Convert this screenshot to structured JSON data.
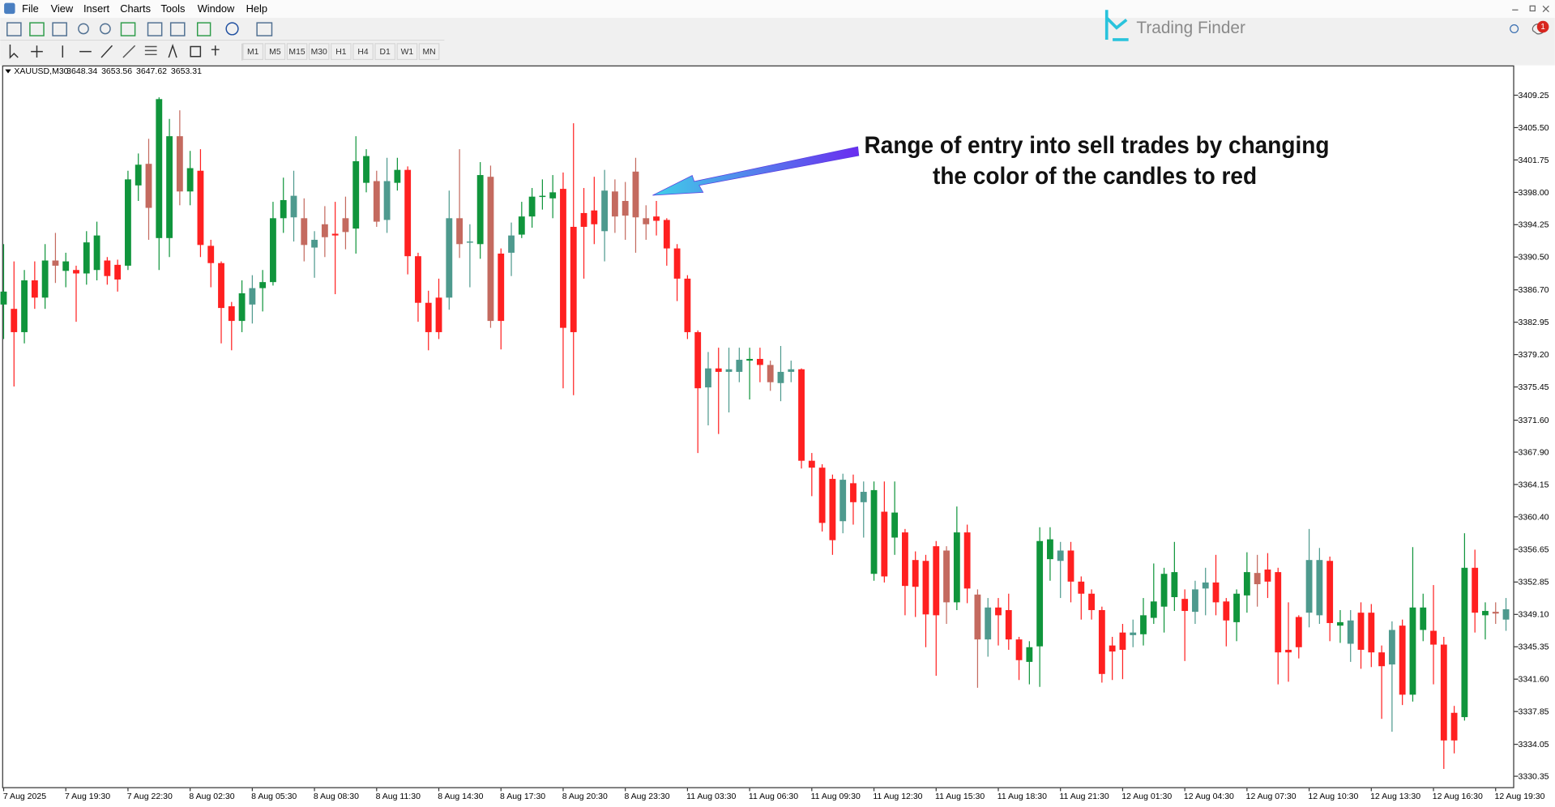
{
  "ui": {
    "menu": [
      "File",
      "View",
      "Insert",
      "Charts",
      "Tools",
      "Window",
      "Help"
    ],
    "timeframes": [
      "M1",
      "M5",
      "M15",
      "M30",
      "H1",
      "H4",
      "D1",
      "W1",
      "MN"
    ],
    "brand": "Trading Finder",
    "badge": "1"
  },
  "chart_data": {
    "type": "candlestick",
    "symbol": "XAUUSD,M30",
    "quote": [
      3648.34,
      3653.56,
      3647.62,
      3653.31
    ],
    "annotation": [
      "Range of entry into sell trades by changing",
      "the color of the candles to red"
    ],
    "grid": false,
    "ylim": [
      3328.97,
      3412.7
    ],
    "yticks": [
      3409.25,
      {
        "value": 3405.5,
        "label": "3405.50"
      },
      3401.75,
      {
        "value": 3398,
        "label": "3398.00"
      },
      3394.25,
      {
        "value": 3390.5,
        "label": "3390.50"
      },
      {
        "value": 3386.7,
        "label": "3386.70"
      },
      3382.95,
      {
        "value": 3379.2,
        "label": "3379.20"
      },
      3375.45,
      {
        "value": 3371.6,
        "label": "3371.60"
      },
      {
        "value": 3367.9,
        "label": "3367.90"
      },
      3364.15,
      {
        "value": 3360.4,
        "label": "3360.40"
      },
      3356.65,
      3352.85,
      {
        "value": 3349.1,
        "label": "3349.10"
      },
      3345.35,
      {
        "value": 3341.6,
        "label": "3341.60"
      },
      3337.85,
      3334.05,
      3330.35
    ],
    "categories": [
      "7 Aug 2025",
      null,
      null,
      null,
      null,
      null,
      "7 Aug 19:30",
      null,
      null,
      null,
      null,
      null,
      "7 Aug 22:30",
      null,
      null,
      null,
      null,
      null,
      "8 Aug 02:30",
      null,
      null,
      null,
      null,
      null,
      "8 Aug 05:30",
      null,
      null,
      null,
      null,
      null,
      "8 Aug 08:30",
      null,
      null,
      null,
      null,
      null,
      "8 Aug 11:30",
      null,
      null,
      null,
      null,
      null,
      "8 Aug 14:30",
      null,
      null,
      null,
      null,
      null,
      "8 Aug 17:30",
      null,
      null,
      null,
      null,
      null,
      "8 Aug 20:30",
      null,
      null,
      null,
      null,
      null,
      "8 Aug 23:30",
      null,
      null,
      null,
      null,
      null,
      "11 Aug 03:30",
      null,
      null,
      null,
      null,
      null,
      "11 Aug 06:30",
      null,
      null,
      null,
      null,
      null,
      "11 Aug 09:30",
      null,
      null,
      null,
      null,
      null,
      "11 Aug 12:30",
      null,
      null,
      null,
      null,
      null,
      "11 Aug 15:30",
      null,
      null,
      null,
      null,
      null,
      "11 Aug 18:30",
      null,
      null,
      null,
      null,
      null,
      "11 Aug 21:30",
      null,
      null,
      null,
      null,
      null,
      "12 Aug 01:30",
      null,
      null,
      null,
      null,
      null,
      "12 Aug 04:30",
      null,
      null,
      null,
      null,
      null,
      "12 Aug 07:30",
      null,
      null,
      null,
      null,
      null,
      "12 Aug 10:30",
      null,
      null,
      null,
      null,
      null,
      "12 Aug 13:30",
      null,
      null,
      null,
      null,
      null,
      "12 Aug 16:30",
      null,
      null,
      null,
      null,
      null,
      "12 Aug 19:30",
      null
    ],
    "open": [
      3385.0,
      3384.5,
      3381.8,
      3387.8,
      3385.8,
      3390.1,
      3388.9,
      3389.0,
      3388.6,
      3389.0,
      3390.1,
      3389.6,
      3389.5,
      3398.8,
      3401.3,
      3392.7,
      3392.7,
      3404.5,
      3398.1,
      3400.5,
      3391.8,
      3389.8,
      3384.8,
      3383.1,
      3385.0,
      3386.9,
      3387.6,
      3395.0,
      3395.1,
      3395.0,
      3391.6,
      3394.3,
      3393.2,
      3395.0,
      3393.8,
      3399.1,
      3399.3,
      3394.8,
      3399.1,
      3400.6,
      3390.6,
      3385.2,
      3385.8,
      3385.8,
      3395.0,
      3392.3,
      3392.0,
      3399.8,
      3390.9,
      3391.0,
      3393.1,
      3395.2,
      3397.5,
      3397.3,
      3398.4,
      3394.0,
      3395.6,
      3395.9,
      3393.5,
      3398.1,
      3397.0,
      3400.4,
      3395.0,
      3395.2,
      3394.8,
      3391.5,
      3388.0,
      3381.8,
      3375.4,
      3377.6,
      3377.2,
      3377.2,
      3378.5,
      3378.7,
      3378.0,
      3375.9,
      3377.2,
      3377.5,
      3366.9,
      3366.1,
      3364.8,
      3359.9,
      3364.3,
      3362.1,
      3353.8,
      3361.0,
      3358.0,
      3358.6,
      3355.4,
      3355.3,
      3357.0,
      3356.5,
      3350.5,
      3358.6,
      3351.4,
      3346.2,
      3349.9,
      3349.6,
      3346.2,
      3343.6,
      3345.4,
      3355.5,
      3355.3,
      3356.5,
      3352.9,
      3351.5,
      3349.6,
      3345.5,
      3347.0,
      3346.7,
      3346.8,
      3348.7,
      3350.0,
      3351.1,
      3350.9,
      3349.4,
      3352.1,
      3352.8,
      3350.6,
      3348.2,
      3351.3,
      3353.9,
      3354.3,
      3354.0,
      3345.0,
      3348.8,
      3349.3,
      3349.0,
      3355.3,
      3347.8,
      3345.7,
      3349.3,
      3349.3,
      3344.7,
      3343.3,
      3347.8,
      3339.8,
      3347.3,
      3347.2,
      3345.6,
      3337.7,
      3337.2,
      3354.5,
      3349.0,
      3349.4,
      3348.5
    ],
    "high": [
      3392,
      3390,
      3389,
      3390,
      3392,
      3393.3,
      3391,
      3389.5,
      3393.5,
      3394.6,
      3390.5,
      3390.2,
      3400.5,
      3402.5,
      3404.2,
      3409.0,
      3406.5,
      3407.5,
      3402.8,
      3403.0,
      3392.5,
      3390,
      3385.3,
      3387.8,
      3388.4,
      3389.0,
      3396.9,
      3399.7,
      3400.5,
      3397.3,
      3393.5,
      3396.4,
      3396.9,
      3397.5,
      3404.5,
      3403.0,
      3400.5,
      3402,
      3402.0,
      3401.0,
      3391.0,
      3386.6,
      3388.0,
      3398.2,
      3403.0,
      3394.3,
      3401.5,
      3401.1,
      3391.5,
      3394.5,
      3396.9,
      3398.5,
      3399.5,
      3400.0,
      3400.3,
      3406.0,
      3398.5,
      3399.8,
      3400.6,
      3399.5,
      3399.2,
      3402.0,
      3396.5,
      3397.0,
      3395.0,
      3392.0,
      3388.4,
      3382.0,
      3379.5,
      3380,
      3380,
      3380.0,
      3380.0,
      3380.0,
      3378.5,
      3380.2,
      3378.5,
      3377.6,
      3367.8,
      3366.5,
      3365.3,
      3365.4,
      3365.3,
      3364.5,
      3364.5,
      3364.5,
      3364.5,
      3359.0,
      3356.4,
      3356.0,
      3357.6,
      3357.0,
      3361.6,
      3359.5,
      3352.0,
      3351.0,
      3351.0,
      3351.5,
      3346.5,
      3346.0,
      3359.2,
      3359.2,
      3357.5,
      3357.5,
      3353.5,
      3352.0,
      3350.0,
      3346.5,
      3348.0,
      3348.5,
      3351.0,
      3355.0,
      3354.5,
      3357.5,
      3352.0,
      3353.0,
      3354.5,
      3356.0,
      3351.0,
      3352.0,
      3356.3,
      3356.0,
      3356.2,
      3354.5,
      3350.5,
      3349.0,
      3359.0,
      3356.8,
      3355.8,
      3349.6,
      3349.6,
      3350.5,
      3350.3,
      3345.5,
      3348.3,
      3348.5,
      3356.9,
      3351.5,
      3352.5,
      3346.5,
      3338.5,
      3358.5,
      3356.6,
      3350.5,
      3350.5,
      3351.0
    ],
    "low": [
      3381,
      3375.5,
      3380.5,
      3384.5,
      3384.5,
      3387.5,
      3387,
      3383,
      3387.3,
      3387.8,
      3387.3,
      3386.5,
      3389,
      3397.0,
      3392.5,
      3389.0,
      3390.5,
      3396.5,
      3396.5,
      3390.5,
      3387,
      3380.5,
      3379.7,
      3381.8,
      3382.8,
      3384.2,
      3387.2,
      3393.3,
      3392.3,
      3390.0,
      3388.1,
      3390.5,
      3386.2,
      3391.4,
      3390.9,
      3398.0,
      3394.0,
      3393.3,
      3398.2,
      3388.5,
      3383,
      3379.7,
      3381.0,
      3384.4,
      3390.4,
      3387,
      3390.3,
      3382.3,
      3379.8,
      3388.3,
      3392.7,
      3393.9,
      3396.0,
      3395.0,
      3375.3,
      3374.5,
      3388.0,
      3392.0,
      3390.0,
      3393.3,
      3392.5,
      3391.0,
      3392.5,
      3393.0,
      3389.5,
      3385.4,
      3381.0,
      3367.8,
      3371.0,
      3370.0,
      3372.5,
      3376.0,
      3374,
      3376.0,
      3375.0,
      3373.8,
      3376.0,
      3366.0,
      3362.8,
      3358.7,
      3356.0,
      3358.5,
      3359.5,
      3358,
      3353.0,
      3352.8,
      3356.0,
      3349.0,
      3348.8,
      3345.3,
      3342.0,
      3348.0,
      3349.6,
      3350.4,
      3340.6,
      3344.2,
      3345.5,
      3345.0,
      3341.5,
      3341.0,
      3340.7,
      3353,
      3351.0,
      3350.5,
      3348.5,
      3348.5,
      3341.2,
      3341.5,
      3341.6,
      3345.3,
      3345.5,
      3348.0,
      3347.0,
      3349.5,
      3343.7,
      3348.0,
      3349.0,
      3349.0,
      3345.4,
      3346.0,
      3349.3,
      3350.0,
      3351.0,
      3341.0,
      3341.3,
      3344.0,
      3347.6,
      3348.0,
      3346.0,
      3345.8,
      3343.6,
      3342.8,
      3343.0,
      3337.0,
      3335.5,
      3338.6,
      3339.0,
      3346.0,
      3341.0,
      3331.2,
      3333.0,
      3336.8,
      3347.0,
      3346.2,
      3348.0,
      3347.2
    ],
    "close": [
      3386.5,
      3381.8,
      3387.8,
      3385.8,
      3390.1,
      3389.5,
      3390.0,
      3388.6,
      3392.2,
      3393.0,
      3388.3,
      3387.9,
      3399.5,
      3401.2,
      3396.2,
      3408.8,
      3404.5,
      3398.1,
      3400.8,
      3391.9,
      3389.8,
      3384.6,
      3383.1,
      3386.3,
      3386.9,
      3387.6,
      3395.0,
      3397.1,
      3397.6,
      3391.9,
      3392.5,
      3392.8,
      3393.0,
      3393.4,
      3401.6,
      3402.2,
      3394.6,
      3399.3,
      3400.6,
      3390.6,
      3385.2,
      3381.8,
      3381.8,
      3395.0,
      3392.0,
      3392.2,
      3400.0,
      3383.1,
      3383.1,
      3393.0,
      3395.2,
      3397.5,
      3397.6,
      3398.0,
      3382.3,
      3381.8,
      3394.0,
      3394.3,
      3398.2,
      3395.2,
      3395.3,
      3395.1,
      3394.3,
      3394.7,
      3391.5,
      3388.0,
      3381.8,
      3375.3,
      3377.6,
      3377.2,
      3377.5,
      3378.6,
      3378.7,
      3378.0,
      3376.0,
      3377.2,
      3377.5,
      3366.9,
      3366.1,
      3359.7,
      3357.7,
      3364.7,
      3362.1,
      3363.3,
      3363.5,
      3353.5,
      3360.9,
      3352.4,
      3352.3,
      3349.1,
      3349.0,
      3350.5,
      3358.6,
      3352.1,
      3346.2,
      3349.9,
      3349.0,
      3346.2,
      3343.8,
      3345.3,
      3357.6,
      3357.8,
      3356.5,
      3352.9,
      3351.5,
      3349.6,
      3342.2,
      3344.8,
      3345.0,
      3347.0,
      3349.0,
      3350.6,
      3353.8,
      3354.0,
      3349.5,
      3352.0,
      3352.8,
      3350.5,
      3348.4,
      3351.5,
      3354.0,
      3352.6,
      3352.9,
      3344.7,
      3344.7,
      3345.3,
      3355.4,
      3355.4,
      3348.1,
      3348.2,
      3348.4,
      3345.0,
      3344.7,
      3343.1,
      3347.3,
      3339.8,
      3349.9,
      3349.9,
      3345.6,
      3334.5,
      3334.5,
      3354.5,
      3349.3,
      3349.5,
      3349.2,
      3349.7
    ],
    "colors": [
      "#10953c",
      "#ff2020",
      "#10953c",
      "#ff2020",
      "#10953c",
      "#c46a5f",
      "#10953c",
      "#ff2020",
      "#10953c",
      "#10953c",
      "#ff2020",
      "#ff2020",
      "#10953c",
      "#10953c",
      "#c46a5f",
      "#10953c",
      "#10953c",
      "#c46a5f",
      "#10953c",
      "#ff2020",
      "#ff2020",
      "#ff2020",
      "#ff2020",
      "#10953c",
      "#4e9a8e",
      "#10953c",
      "#10953c",
      "#10953c",
      "#4e9a8e",
      "#c46a5f",
      "#4e9a8e",
      "#c46a5f",
      "#ff2020",
      "#c46a5f",
      "#10953c",
      "#10953c",
      "#c46a5f",
      "#4e9a8e",
      "#10953c",
      "#ff2020",
      "#ff2020",
      "#ff2020",
      "#ff2020",
      "#4e9a8e",
      "#c46a5f",
      "#4e9a8e",
      "#10953c",
      "#c46a5f",
      "#ff2020",
      "#4e9a8e",
      "#10953c",
      "#10953c",
      "#10953c",
      "#10953c",
      "#ff2020",
      "#ff2020",
      "#ff2020",
      "#ff2020",
      "#4e9a8e",
      "#c46a5f",
      "#c46a5f",
      "#c46a5f",
      "#c46a5f",
      "#ff2020",
      "#ff2020",
      "#ff2020",
      "#ff2020",
      "#ff2020",
      "#4e9a8e",
      "#ff2020",
      "#4e9a8e",
      "#4e9a8e",
      "#10953c",
      "#ff2020",
      "#c46a5f",
      "#4e9a8e",
      "#4e9a8e",
      "#ff2020",
      "#ff2020",
      "#ff2020",
      "#ff2020",
      "#4e9a8e",
      "#ff2020",
      "#4e9a8e",
      "#10953c",
      "#ff2020",
      "#10953c",
      "#ff2020",
      "#ff2020",
      "#ff2020",
      "#ff2020",
      "#c46a5f",
      "#10953c",
      "#ff2020",
      "#c46a5f",
      "#4e9a8e",
      "#ff2020",
      "#ff2020",
      "#ff2020",
      "#10953c",
      "#10953c",
      "#10953c",
      "#4e9a8e",
      "#ff2020",
      "#ff2020",
      "#ff2020",
      "#ff2020",
      "#ff2020",
      "#ff2020",
      "#4e9a8e",
      "#10953c",
      "#10953c",
      "#10953c",
      "#10953c",
      "#ff2020",
      "#4e9a8e",
      "#4e9a8e",
      "#ff2020",
      "#ff2020",
      "#10953c",
      "#10953c",
      "#c46a5f",
      "#ff2020",
      "#ff2020",
      "#ff2020",
      "#ff2020",
      "#4e9a8e",
      "#4e9a8e",
      "#ff2020",
      "#10953c",
      "#4e9a8e",
      "#ff2020",
      "#ff2020",
      "#ff2020",
      "#4e9a8e",
      "#ff2020",
      "#10953c",
      "#10953c",
      "#ff2020",
      "#ff2020",
      "#ff2020",
      "#10953c",
      "#ff2020",
      "#10953c",
      "#c46a5f",
      "#4e9a8e"
    ]
  }
}
